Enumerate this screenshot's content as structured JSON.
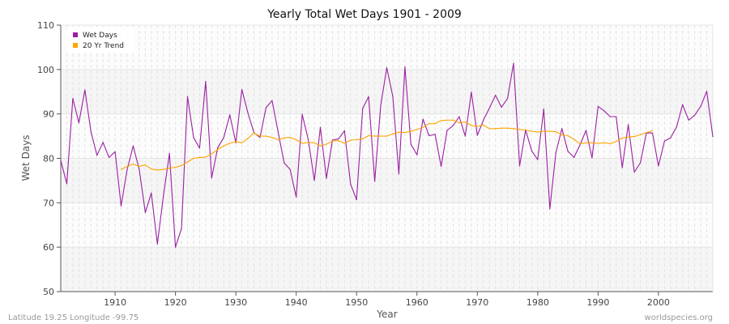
{
  "chart_data": {
    "type": "line",
    "title": "Yearly Total Wet Days 1901 - 2009",
    "xlabel": "Year",
    "ylabel": "Wet Days",
    "xlim": [
      1901,
      2009
    ],
    "ylim": [
      50,
      110
    ],
    "xticks": [
      1910,
      1920,
      1930,
      1940,
      1950,
      1960,
      1970,
      1980,
      1990,
      2000
    ],
    "yticks": [
      50,
      60,
      70,
      80,
      90,
      100,
      110
    ],
    "grid": true,
    "legend_position": "top-left",
    "series": [
      {
        "name": "Wet Days",
        "color": "#9b1fa3",
        "x_start": 1901,
        "values": [
          79.5,
          74.3,
          93.5,
          88,
          95.4,
          86,
          80.7,
          83.6,
          80.2,
          81.5,
          69.3,
          77.5,
          82.8,
          77.5,
          67.8,
          72.2,
          60.7,
          71.5,
          81.1,
          60,
          64.2,
          93.9,
          84.7,
          82.3,
          97.3,
          75.6,
          82.4,
          84.7,
          89.8,
          83.5,
          95.5,
          90.2,
          85.8,
          84.7,
          91.4,
          93,
          86,
          79,
          77.5,
          71.3,
          89.9,
          84.2,
          75,
          87,
          75.5,
          84.1,
          84.4,
          86.2,
          74.2,
          70.7,
          91.2,
          93.9,
          74.8,
          91.9,
          100.4,
          93.9,
          76.5,
          100.6,
          83.2,
          80.8,
          88.8,
          85.1,
          85.4,
          78.2,
          86.3,
          87.4,
          89.4,
          85,
          94.9,
          85.2,
          88.6,
          91.3,
          94.2,
          91.5,
          93.5,
          101.4,
          78.3,
          86.4,
          81.7,
          79.7,
          91.1,
          68.6,
          81.2,
          86.7,
          81.6,
          80.2,
          83,
          86.3,
          80.1,
          91.7,
          90.7,
          89.4,
          89.4,
          77.9,
          87.6,
          76.9,
          79,
          85.7,
          85.7,
          78.3,
          83.9,
          84.6,
          87.1,
          92.1,
          88.6,
          89.7,
          91.7,
          95.1,
          84.9
        ]
      },
      {
        "name": "20 Yr Trend",
        "color": "#ffa500",
        "x_start": 1911,
        "values": [
          77.5,
          78.2,
          78.7,
          78.2,
          78.5,
          77.6,
          77.4,
          77.5,
          77.8,
          78,
          78.4,
          79.2,
          80,
          80.2,
          80.3,
          81,
          82,
          82.8,
          83.4,
          83.8,
          83.5,
          84.5,
          85.7,
          85,
          85,
          84.7,
          84.2,
          84.6,
          84.7,
          84.2,
          83.4,
          83.6,
          83.5,
          82.8,
          83.2,
          83.9,
          84,
          83.4,
          84.1,
          84.2,
          84.4,
          85.1,
          85,
          85,
          85,
          85.5,
          85.9,
          85.8,
          86.1,
          86.5,
          87,
          87.8,
          87.8,
          88.5,
          88.6,
          88.6,
          88,
          88.2,
          87.4,
          87.2,
          87.5,
          86.7,
          86.7,
          86.8,
          86.8,
          86.7,
          86.5,
          86.4,
          86.1,
          85.9,
          86.1,
          86.1,
          86,
          85.3,
          85.1,
          84.3,
          83.3,
          83.5,
          83.5,
          83.4,
          83.5,
          83.3,
          83.8,
          84.6,
          84.8,
          84.9,
          85.3,
          85.8,
          86.2
        ]
      }
    ]
  },
  "footer": {
    "location": "Latitude 19.25 Longitude -99.75",
    "source": "worldspecies.org"
  }
}
